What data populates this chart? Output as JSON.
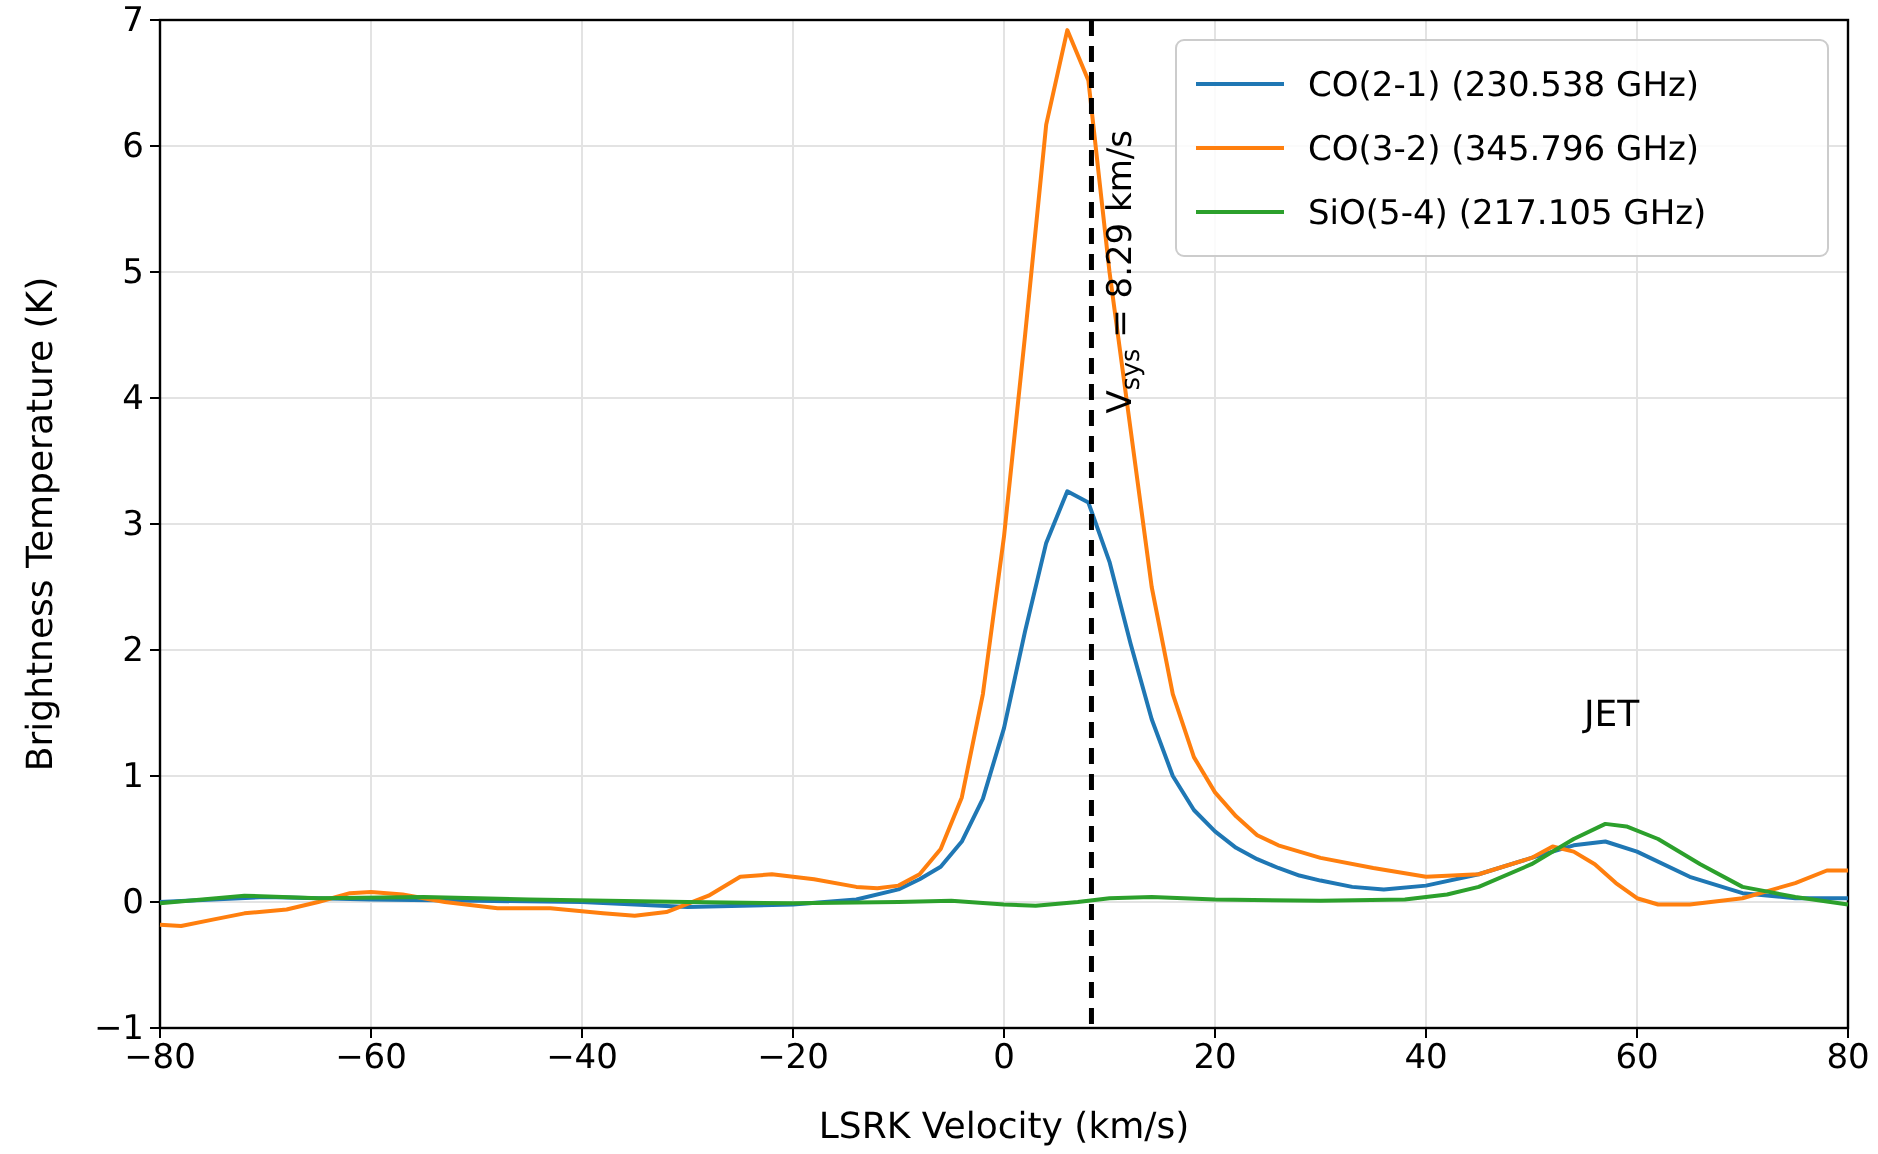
{
  "chart_data": {
    "type": "line",
    "xlabel": "LSRK Velocity (km/s)",
    "ylabel": "Brightness Temperature (K)",
    "xlim": [
      -80,
      80
    ],
    "xticks": [
      -80,
      -60,
      -40,
      -20,
      0,
      20,
      40,
      60,
      80
    ],
    "ylim": [
      -1,
      7
    ],
    "yticks": [
      -1,
      0,
      1,
      2,
      3,
      4,
      5,
      6,
      7
    ],
    "grid": true,
    "legend": "top right",
    "line_style": "solid",
    "marker": "none",
    "series": [
      {
        "name": "CO(2-1) (230.538 GHz)",
        "color": "#1f77b4",
        "x": [
          -80,
          -70,
          -60,
          -50,
          -40,
          -30,
          -20,
          -14,
          -10,
          -8,
          -6,
          -4,
          -2,
          0,
          2,
          4,
          6,
          8,
          10,
          12,
          14,
          16,
          18,
          20,
          22,
          24,
          26,
          28,
          30,
          33,
          36,
          40,
          45,
          50,
          54,
          57,
          60,
          65,
          70,
          75,
          80
        ],
        "values": [
          0,
          0.04,
          0.02,
          0.01,
          0,
          -0.04,
          -0.02,
          0.02,
          0.1,
          0.18,
          0.28,
          0.48,
          0.82,
          1.38,
          2.15,
          2.85,
          3.26,
          3.17,
          2.7,
          2.05,
          1.45,
          1.0,
          0.73,
          0.56,
          0.43,
          0.34,
          0.27,
          0.21,
          0.17,
          0.12,
          0.1,
          0.13,
          0.22,
          0.35,
          0.45,
          0.48,
          0.4,
          0.2,
          0.07,
          0.03,
          0.03
        ]
      },
      {
        "name": "CO(3-2) (345.796 GHz)",
        "color": "#ff7f0e",
        "x": [
          -80,
          -78,
          -75,
          -72,
          -68,
          -65,
          -62,
          -60,
          -57,
          -53,
          -48,
          -43,
          -38,
          -35,
          -32,
          -28,
          -25,
          -22,
          -18,
          -14,
          -12,
          -10,
          -8,
          -6,
          -4,
          -2,
          0,
          2,
          4,
          6,
          8,
          10,
          12,
          14,
          16,
          18,
          20,
          22,
          24,
          26,
          28,
          30,
          35,
          40,
          45,
          50,
          52,
          54,
          56,
          58,
          60,
          62,
          65,
          70,
          75,
          78,
          80
        ],
        "values": [
          -0.18,
          -0.19,
          -0.14,
          -0.09,
          -0.06,
          0,
          0.07,
          0.08,
          0.06,
          0,
          -0.05,
          -0.05,
          -0.09,
          -0.11,
          -0.08,
          0.05,
          0.2,
          0.22,
          0.18,
          0.12,
          0.11,
          0.13,
          0.22,
          0.42,
          0.83,
          1.65,
          2.9,
          4.5,
          6.17,
          6.92,
          6.52,
          5.0,
          3.75,
          2.5,
          1.65,
          1.15,
          0.87,
          0.68,
          0.53,
          0.45,
          0.4,
          0.35,
          0.27,
          0.2,
          0.22,
          0.35,
          0.44,
          0.4,
          0.3,
          0.15,
          0.03,
          -0.02,
          -0.02,
          0.03,
          0.15,
          0.25,
          0.25
        ]
      },
      {
        "name": "SiO(5-4) (217.105 GHz)",
        "color": "#2ca02c",
        "x": [
          -80,
          -72,
          -65,
          -55,
          -45,
          -30,
          -20,
          -10,
          -5,
          0,
          3,
          7,
          10,
          14,
          20,
          30,
          38,
          42,
          45,
          50,
          54,
          57,
          59,
          62,
          66,
          70,
          75,
          80
        ],
        "values": [
          -0.01,
          0.05,
          0.03,
          0.04,
          0.02,
          0,
          -0.01,
          0,
          0.01,
          -0.02,
          -0.03,
          0,
          0.03,
          0.04,
          0.02,
          0.01,
          0.02,
          0.06,
          0.12,
          0.3,
          0.5,
          0.62,
          0.6,
          0.5,
          0.3,
          0.12,
          0.04,
          -0.02
        ]
      }
    ],
    "ref_lines": [
      {
        "axis": "x",
        "value": 8.29,
        "label": "V$_{sys}$ = 8.29 km/s",
        "color": "#000000",
        "line_style": "dashed"
      }
    ],
    "annotations": [
      "JET"
    ]
  }
}
